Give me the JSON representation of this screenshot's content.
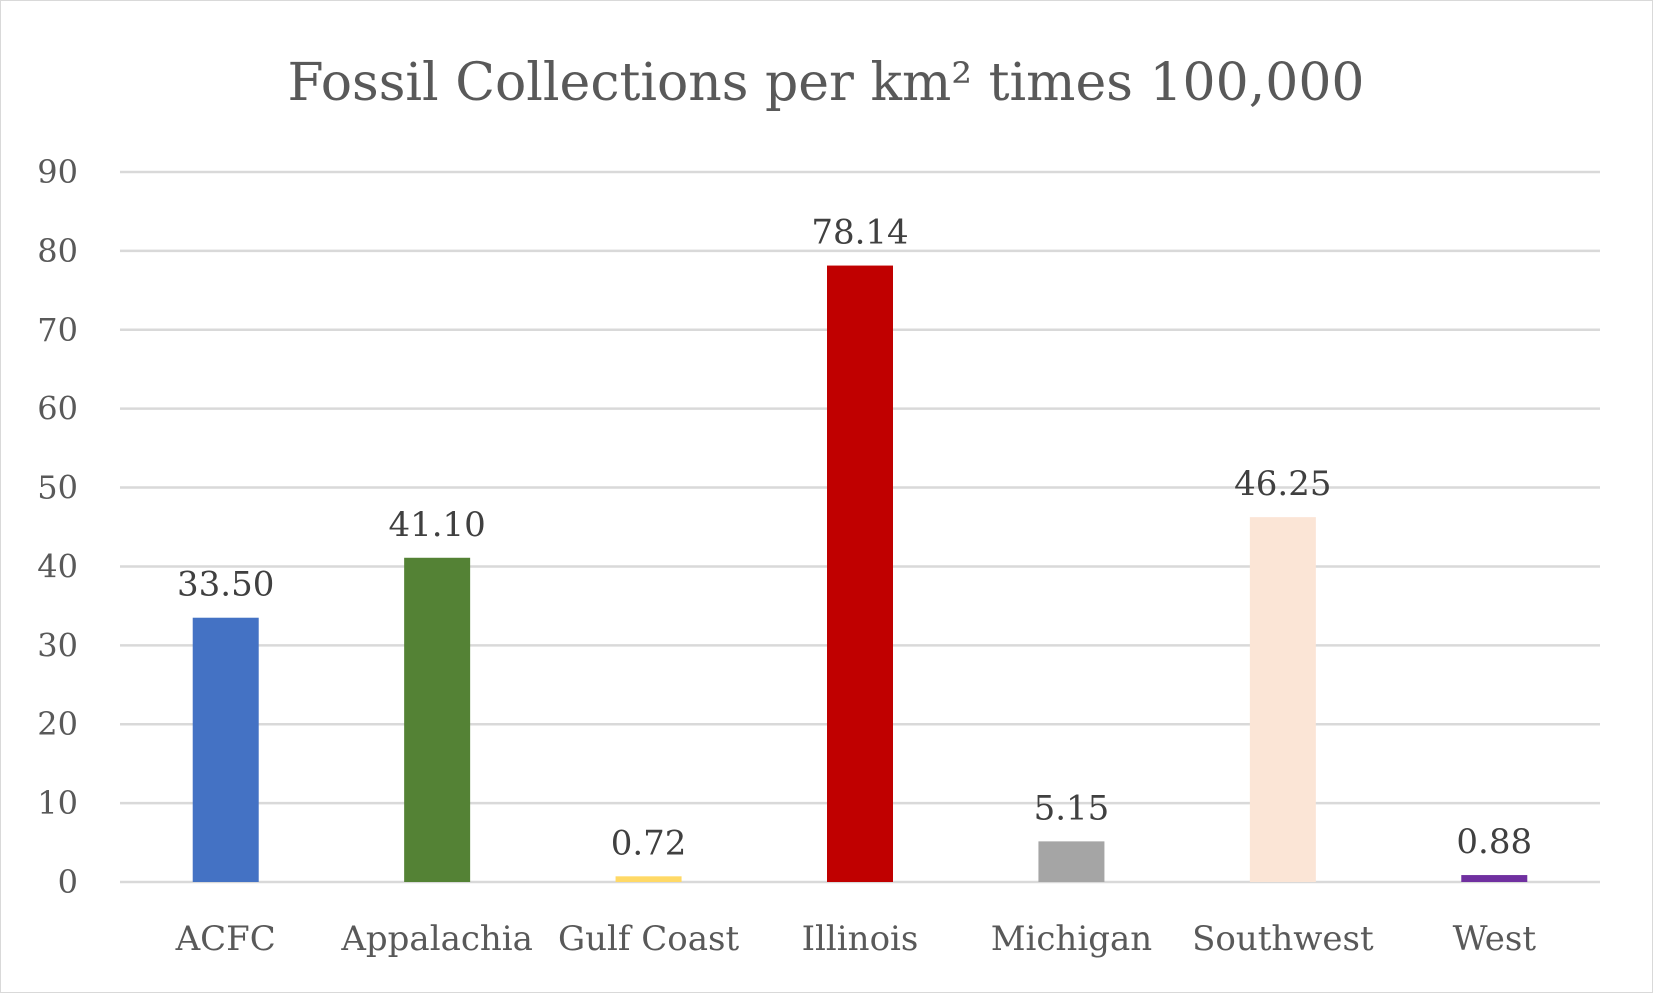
{
  "chart_data": {
    "type": "bar",
    "title": "Fossil Collections per km² times 100,000",
    "categories": [
      "ACFC",
      "Appalachia",
      "Gulf Coast",
      "Illinois",
      "Michigan",
      "Southwest",
      "West"
    ],
    "values": [
      33.5,
      41.1,
      0.72,
      78.14,
      5.15,
      46.25,
      0.88
    ],
    "value_labels": [
      "33.50",
      "41.10",
      "0.72",
      "78.14",
      "5.15",
      "46.25",
      "0.88"
    ],
    "colors": [
      "#4472C4",
      "#548235",
      "#FFD966",
      "#C00000",
      "#A5A5A5",
      "#FBE5D6",
      "#7030A0"
    ],
    "yticks": [
      "0",
      "10",
      "20",
      "30",
      "40",
      "50",
      "60",
      "70",
      "80",
      "90"
    ],
    "ylim": [
      0,
      90
    ],
    "grid": true,
    "legend": "none"
  }
}
